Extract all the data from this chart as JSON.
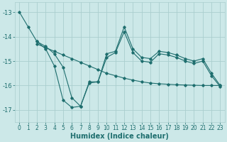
{
  "xlabel": "Humidex (Indice chaleur)",
  "bg_color": "#cce8e8",
  "line_color": "#1e6e6e",
  "grid_color": "#aacece",
  "xlim": [
    -0.5,
    23.5
  ],
  "ylim": [
    -17.5,
    -12.6
  ],
  "yticks": [
    -17,
    -16,
    -15,
    -14,
    -13
  ],
  "xticks": [
    0,
    1,
    2,
    3,
    4,
    5,
    6,
    7,
    8,
    9,
    10,
    11,
    12,
    13,
    14,
    15,
    16,
    17,
    18,
    19,
    20,
    21,
    22,
    23
  ],
  "series": [
    {
      "x": [
        0,
        1,
        2,
        3,
        4,
        5,
        6,
        7,
        8,
        9,
        10,
        11,
        12,
        13,
        14,
        15,
        16,
        17,
        18,
        19,
        20,
        21,
        22,
        23
      ],
      "y": [
        -13.0,
        -13.6,
        -14.2,
        -14.5,
        -15.2,
        -16.6,
        -16.9,
        -16.85,
        -15.9,
        -15.85,
        -14.85,
        -14.65,
        -13.8,
        -14.65,
        -15.0,
        -15.05,
        -14.7,
        -14.75,
        -14.85,
        -15.0,
        -15.1,
        -15.0,
        -15.6,
        -16.05
      ]
    },
    {
      "x": [
        2,
        3,
        4,
        5,
        6,
        7,
        8,
        9,
        10,
        11,
        12,
        13,
        14,
        15,
        16,
        17,
        18,
        19,
        20,
        21,
        22,
        23
      ],
      "y": [
        -14.3,
        -14.45,
        -14.6,
        -14.75,
        -14.9,
        -15.05,
        -15.2,
        -15.35,
        -15.5,
        -15.6,
        -15.7,
        -15.78,
        -15.85,
        -15.9,
        -15.93,
        -15.95,
        -15.97,
        -15.98,
        -15.99,
        -16.0,
        -16.0,
        -16.0
      ]
    },
    {
      "x": [
        2,
        3,
        4,
        5,
        6,
        7,
        8,
        9,
        10,
        11,
        12,
        13,
        14,
        15,
        16,
        17,
        18,
        19,
        20,
        21,
        22,
        23
      ],
      "y": [
        -14.2,
        -14.4,
        -14.7,
        -15.25,
        -16.5,
        -16.85,
        -15.85,
        -15.85,
        -14.7,
        -14.6,
        -13.6,
        -14.5,
        -14.85,
        -14.9,
        -14.6,
        -14.65,
        -14.75,
        -14.9,
        -15.0,
        -14.9,
        -15.5,
        -16.0
      ]
    }
  ]
}
